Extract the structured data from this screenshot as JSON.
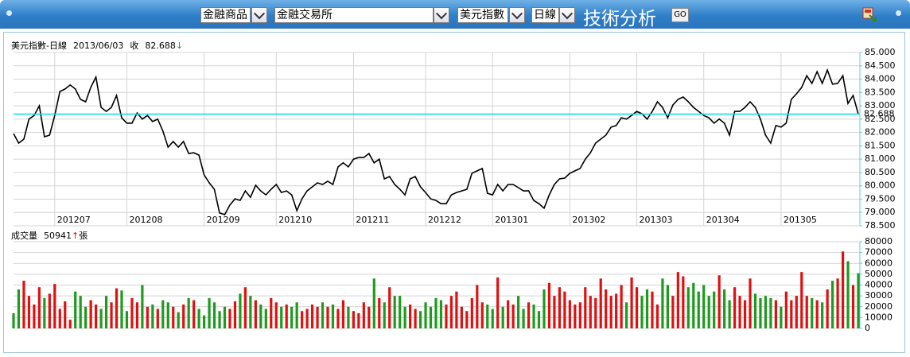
{
  "toolbar": {
    "product": "金融商品",
    "exchange": "金融交易所",
    "symbol": "美元指數",
    "period": "日線",
    "title": "技術分析",
    "go": "GO"
  },
  "chart_data": [
    {
      "type": "line",
      "title": "美元指數-日線",
      "date": "2013/06/03",
      "close_label": "收",
      "close": 82.688,
      "close_arrow": "↓",
      "color": "#000000",
      "close_line_color": "#00e0f0",
      "grid": true,
      "values": [
        81.96,
        81.6,
        81.75,
        82.5,
        82.64,
        83.0,
        81.84,
        81.9,
        82.64,
        83.54,
        83.63,
        83.78,
        83.63,
        83.24,
        83.15,
        83.69,
        84.08,
        82.94,
        82.79,
        82.94,
        83.39,
        82.55,
        82.35,
        82.35,
        82.73,
        82.5,
        82.64,
        82.41,
        82.5,
        82.05,
        81.45,
        81.66,
        81.45,
        81.66,
        81.21,
        81.24,
        81.15,
        80.41,
        80.11,
        79.87,
        78.98,
        78.92,
        79.28,
        79.51,
        79.45,
        79.81,
        79.57,
        80.02,
        79.81,
        79.66,
        79.87,
        80.05,
        79.75,
        79.81,
        79.66,
        79.07,
        79.51,
        79.81,
        79.96,
        80.11,
        80.05,
        80.17,
        80.05,
        80.71,
        80.86,
        80.71,
        81.0,
        81.06,
        81.06,
        81.21,
        80.86,
        81.0,
        80.26,
        80.35,
        80.05,
        79.87,
        79.66,
        80.26,
        80.35,
        79.96,
        79.75,
        79.51,
        79.45,
        79.33,
        79.33,
        79.66,
        79.75,
        79.81,
        79.87,
        80.47,
        80.56,
        80.65,
        79.72,
        79.66,
        80.05,
        79.81,
        80.05,
        80.05,
        79.93,
        79.81,
        79.81,
        79.45,
        79.33,
        79.16,
        79.66,
        80.05,
        80.26,
        80.29,
        80.47,
        80.56,
        80.65,
        81.0,
        81.24,
        81.6,
        81.75,
        81.9,
        82.2,
        82.26,
        82.55,
        82.5,
        82.64,
        82.79,
        82.7,
        82.5,
        82.79,
        83.15,
        82.94,
        82.55,
        83.03,
        83.24,
        83.33,
        83.15,
        82.94,
        82.79,
        82.64,
        82.55,
        82.35,
        82.5,
        82.35,
        81.9,
        82.79,
        82.79,
        82.94,
        83.15,
        82.94,
        82.5,
        81.9,
        81.6,
        82.26,
        82.2,
        82.35,
        83.24,
        83.45,
        83.69,
        84.13,
        83.84,
        84.28,
        83.84,
        84.34,
        83.81,
        83.84,
        84.13,
        83.09,
        83.39,
        82.688
      ],
      "xlim": [
        0,
        164
      ],
      "xticks": [
        {
          "value": 8,
          "label": "201207"
        },
        {
          "value": 22,
          "label": "201208"
        },
        {
          "value": 37,
          "label": "201209"
        },
        {
          "value": 51,
          "label": "201210"
        },
        {
          "value": 66,
          "label": "201211"
        },
        {
          "value": 80,
          "label": "201212"
        },
        {
          "value": 93,
          "label": "201301"
        },
        {
          "value": 108,
          "label": "201302"
        },
        {
          "value": 121,
          "label": "201303"
        },
        {
          "value": 134,
          "label": "201304"
        },
        {
          "value": 149,
          "label": "201305"
        }
      ],
      "ylim": [
        78.5,
        85
      ],
      "yticks": [
        {
          "value": 85,
          "label": "85.000"
        },
        {
          "value": 84.5,
          "label": "84.500"
        },
        {
          "value": 84,
          "label": "84.000"
        },
        {
          "value": 83.5,
          "label": "83.500"
        },
        {
          "value": 83,
          "label": "83.000"
        },
        {
          "value": 82.5,
          "label": "82.500"
        },
        {
          "value": 82,
          "label": "82.000"
        },
        {
          "value": 81.5,
          "label": "81.500"
        },
        {
          "value": 81,
          "label": "81.000"
        },
        {
          "value": 80.5,
          "label": "80.500"
        },
        {
          "value": 80,
          "label": "80.000"
        },
        {
          "value": 79.5,
          "label": "79.500"
        },
        {
          "value": 79,
          "label": "79.000"
        },
        {
          "value": 78.5,
          "label": "78.500"
        }
      ]
    },
    {
      "type": "bar",
      "title": "成交量",
      "last": 50941,
      "last_arrow": "↑",
      "unit": "張",
      "up_color": "#e01010",
      "down_color": "#1e9a1e",
      "grid": true,
      "values": [
        14000,
        36000,
        44000,
        30000,
        22000,
        38000,
        28000,
        32000,
        41000,
        18000,
        25000,
        8000,
        34000,
        30000,
        20000,
        26000,
        22000,
        18000,
        30000,
        24000,
        37000,
        35000,
        16000,
        28000,
        24000,
        40000,
        20000,
        22000,
        18000,
        26000,
        24000,
        20000,
        15000,
        22000,
        28000,
        26000,
        18000,
        12000,
        28000,
        24000,
        16000,
        20000,
        18000,
        25000,
        32000,
        38000,
        30000,
        26000,
        22000,
        18000,
        28000,
        24000,
        20000,
        22000,
        20000,
        24000,
        16000,
        18000,
        22000,
        20000,
        24000,
        20000,
        22000,
        18000,
        26000,
        20000,
        16000,
        14000,
        24000,
        20000,
        46000,
        28000,
        24000,
        38000,
        30000,
        30000,
        20000,
        22000,
        18000,
        16000,
        24000,
        20000,
        28000,
        26000,
        22000,
        30000,
        34000,
        20000,
        16000,
        28000,
        40000,
        24000,
        22000,
        18000,
        47000,
        20000,
        26000,
        22000,
        30000,
        18000,
        24000,
        22000,
        16000,
        36000,
        42000,
        30000,
        38000,
        34000,
        26000,
        22000,
        24000,
        38000,
        30000,
        28000,
        46000,
        36000,
        30000,
        32000,
        40000,
        24000,
        47000,
        38000,
        30000,
        36000,
        34000,
        22000,
        46000,
        40000,
        30000,
        52000,
        48000,
        38000,
        42000,
        34000,
        40000,
        30000,
        34000,
        49000,
        36000,
        26000,
        38000,
        30000,
        26000,
        46000,
        32000,
        28000,
        30000,
        28000,
        26000,
        20000,
        34000,
        26000,
        30000,
        52000,
        30000,
        28000,
        26000,
        24000,
        36000,
        44000,
        46000,
        71000,
        62000,
        40000,
        50941
      ],
      "xlim": [
        0,
        164
      ],
      "ylim": [
        0,
        80000
      ],
      "yticks": [
        80000,
        70000,
        60000,
        50000,
        40000,
        30000,
        20000,
        10000,
        0
      ]
    }
  ]
}
